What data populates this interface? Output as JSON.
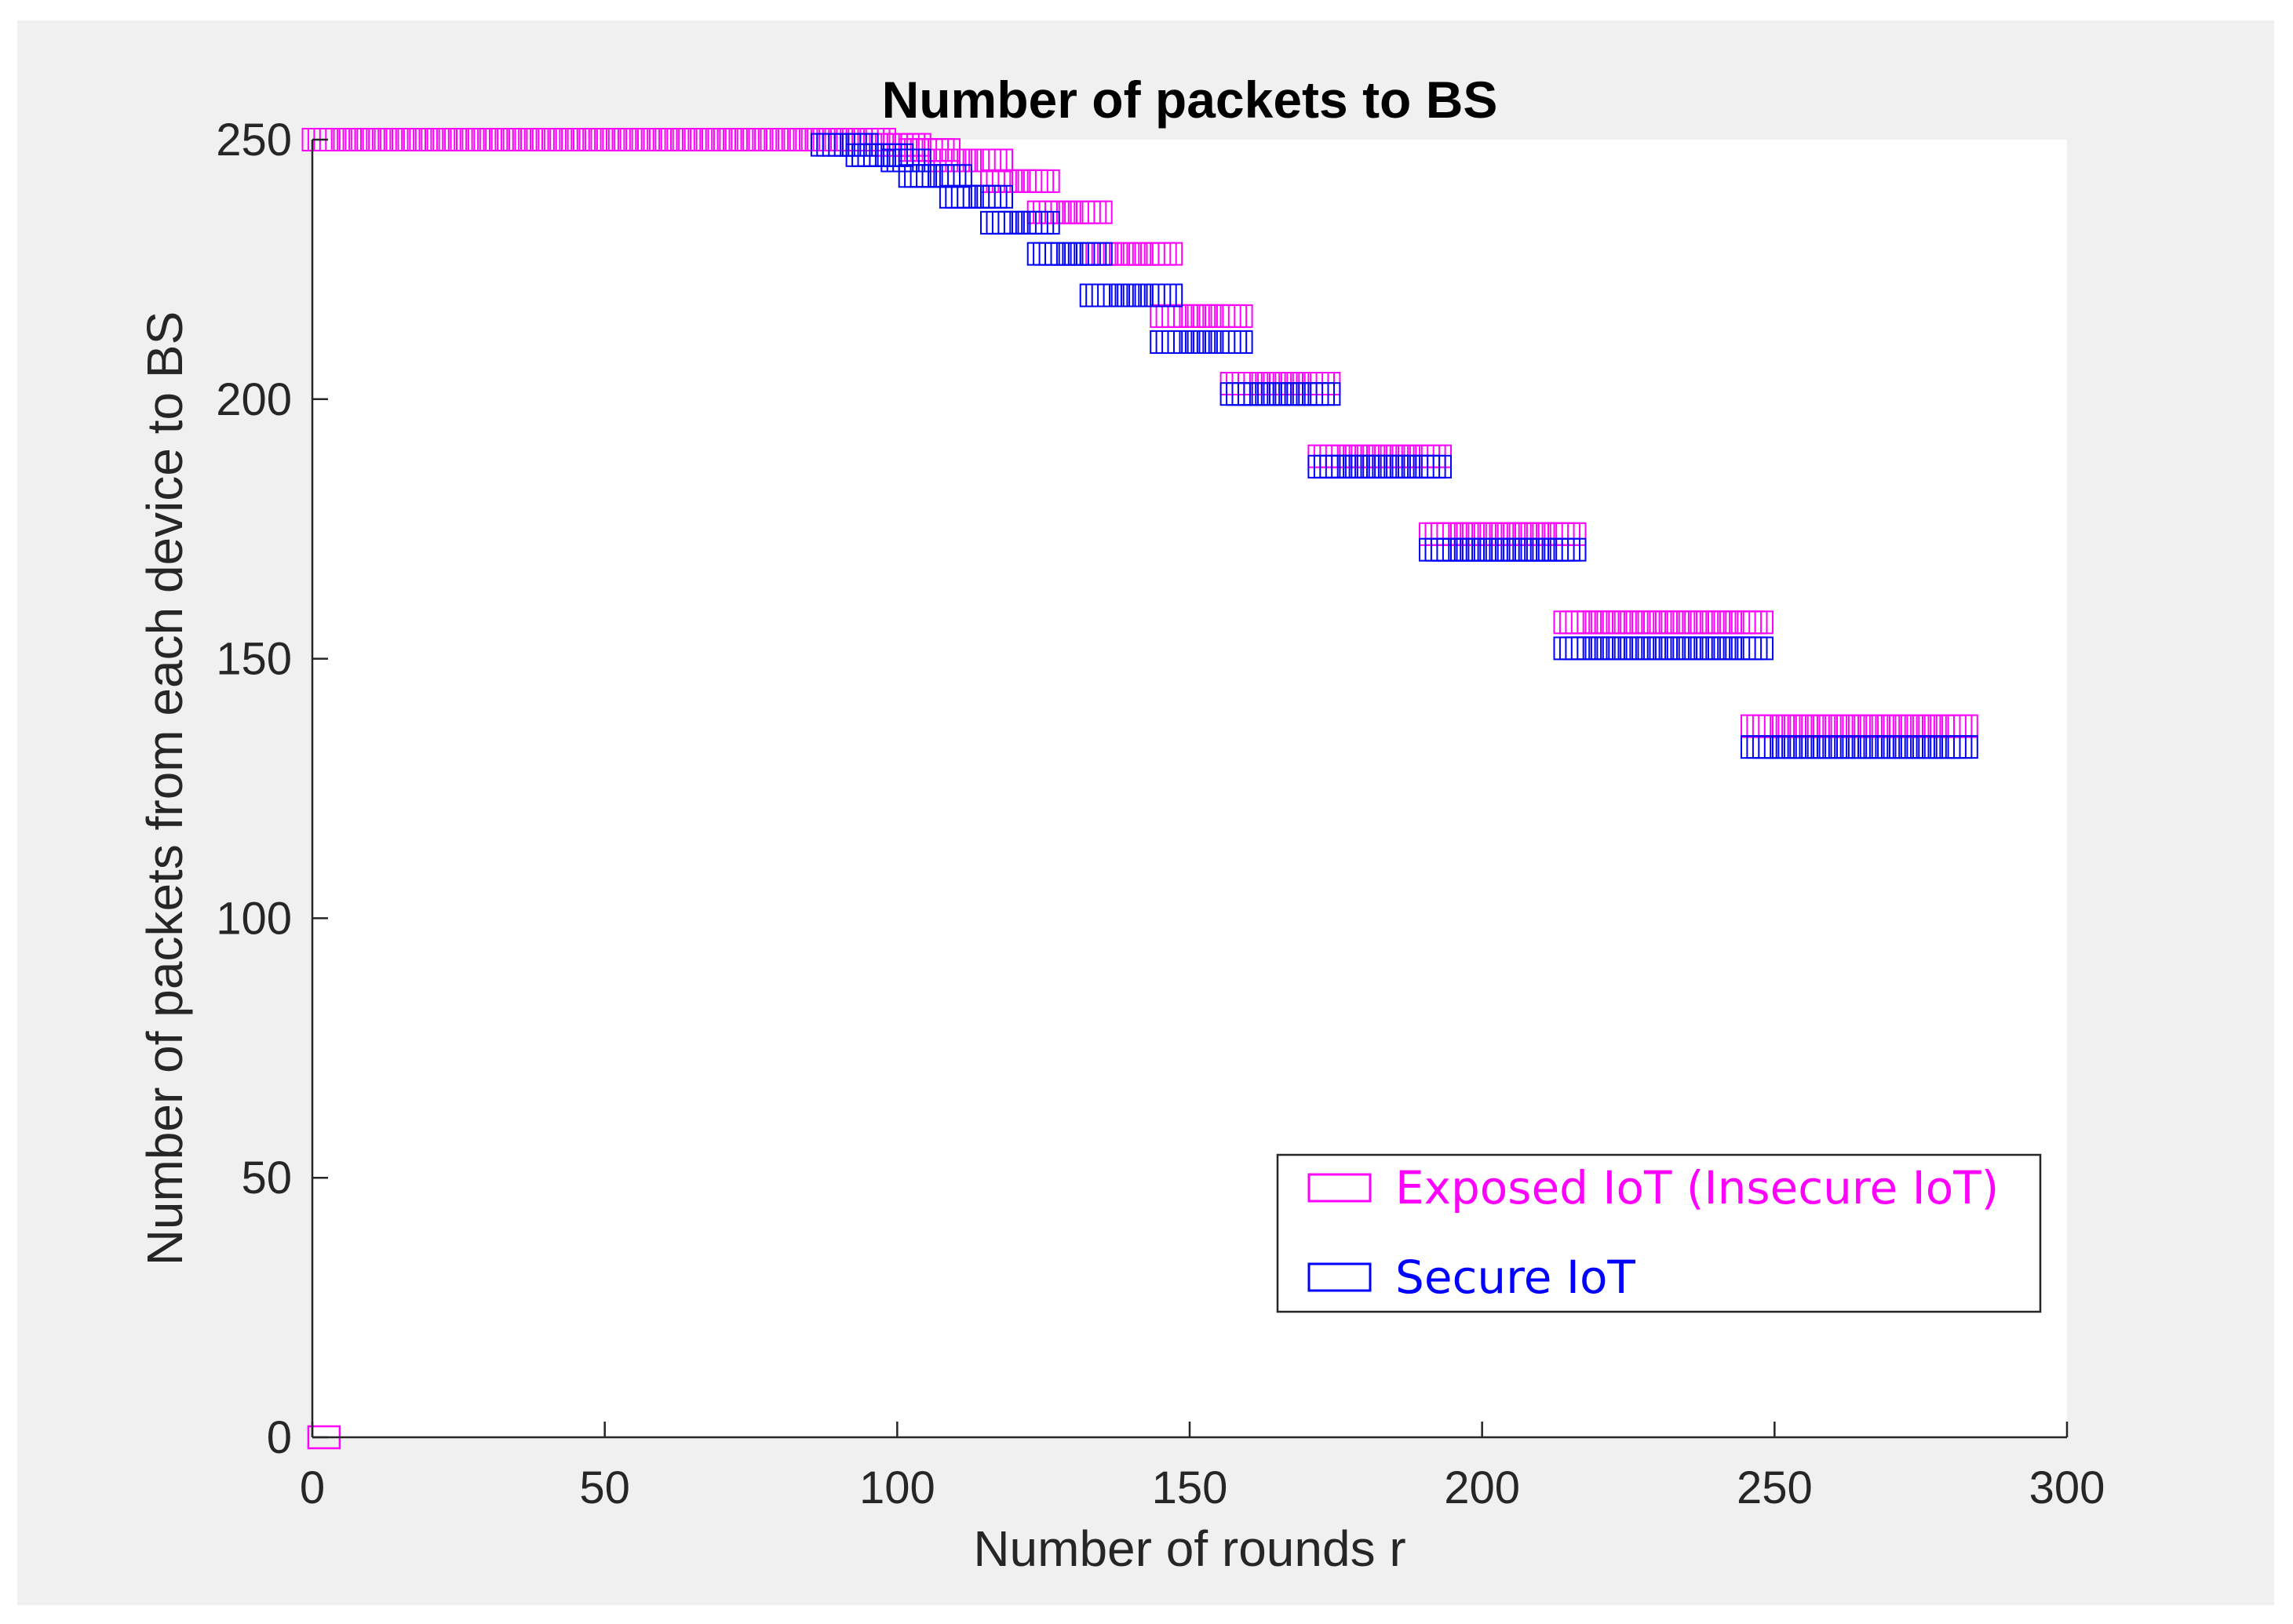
{
  "chart_data": {
    "type": "scatter",
    "title": "Number of packets to BS",
    "xlabel": "Number of rounds r",
    "ylabel": "Number of packets from each device to BS",
    "xlim": [
      0,
      300
    ],
    "ylim": [
      0,
      250
    ],
    "xticks": [
      0,
      50,
      100,
      150,
      200,
      250,
      300
    ],
    "yticks": [
      0,
      50,
      100,
      150,
      200,
      250
    ],
    "grid": false,
    "legend_position": "bottom-right",
    "marker": "square",
    "series": [
      {
        "name": "Exposed IoT (Insecure IoT)",
        "color": "#ff00ff",
        "segments": [
          {
            "x_start": 1,
            "x_end": 97,
            "y": 250
          },
          {
            "x_start": 97,
            "x_end": 103,
            "y": 249
          },
          {
            "x_start": 103,
            "x_end": 108,
            "y": 248
          },
          {
            "x_start": 108,
            "x_end": 117,
            "y": 246
          },
          {
            "x_start": 117,
            "x_end": 125,
            "y": 242
          },
          {
            "x_start": 125,
            "x_end": 134,
            "y": 236
          },
          {
            "x_start": 134,
            "x_end": 146,
            "y": 228
          },
          {
            "x_start": 146,
            "x_end": 158,
            "y": 216
          },
          {
            "x_start": 158,
            "x_end": 173,
            "y": 203
          },
          {
            "x_start": 173,
            "x_end": 192,
            "y": 189
          },
          {
            "x_start": 192,
            "x_end": 215,
            "y": 174
          },
          {
            "x_start": 215,
            "x_end": 247,
            "y": 157
          },
          {
            "x_start": 247,
            "x_end": 282,
            "y": 137
          }
        ],
        "extra_points": [
          {
            "x": 2,
            "y": 0
          }
        ]
      },
      {
        "name": "Secure IoT",
        "color": "#0000ff",
        "segments": [
          {
            "x_start": 88,
            "x_end": 94,
            "y": 249
          },
          {
            "x_start": 94,
            "x_end": 100,
            "y": 247
          },
          {
            "x_start": 100,
            "x_end": 103,
            "y": 246
          },
          {
            "x_start": 103,
            "x_end": 110,
            "y": 243
          },
          {
            "x_start": 110,
            "x_end": 117,
            "y": 239
          },
          {
            "x_start": 117,
            "x_end": 125,
            "y": 234
          },
          {
            "x_start": 125,
            "x_end": 134,
            "y": 228
          },
          {
            "x_start": 134,
            "x_end": 146,
            "y": 220
          },
          {
            "x_start": 146,
            "x_end": 158,
            "y": 211
          },
          {
            "x_start": 158,
            "x_end": 173,
            "y": 201
          },
          {
            "x_start": 173,
            "x_end": 192,
            "y": 187
          },
          {
            "x_start": 192,
            "x_end": 215,
            "y": 171
          },
          {
            "x_start": 215,
            "x_end": 247,
            "y": 152
          },
          {
            "x_start": 247,
            "x_end": 282,
            "y": 133
          }
        ],
        "extra_points": []
      }
    ]
  }
}
